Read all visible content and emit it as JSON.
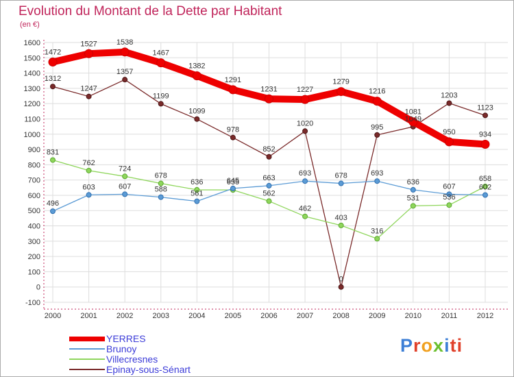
{
  "colors": {
    "title": "#c0245a",
    "axis_text": "#333333",
    "grid": "#dddddd",
    "legend_text": "#3b3bd8"
  },
  "chart_data": {
    "type": "line",
    "title": "Evolution du Montant de la Dette par Habitant",
    "subtitle": "(en €)",
    "xlabel": "",
    "ylabel": "",
    "x": [
      "2000",
      "2001",
      "2002",
      "2003",
      "2004",
      "2005",
      "2006",
      "2007",
      "2008",
      "2009",
      "2010",
      "2011",
      "2012"
    ],
    "yticks": [
      -100,
      0,
      100,
      200,
      300,
      400,
      500,
      600,
      700,
      800,
      900,
      1000,
      1100,
      1200,
      1300,
      1400,
      1500,
      1600
    ],
    "ylim": [
      -100,
      1600
    ],
    "grid": true,
    "legend_position": "bottom-left",
    "series": [
      {
        "name": "YERRES",
        "color": "#ee0000",
        "values": [
          1472,
          1527,
          1538,
          1467,
          1382,
          1291,
          1231,
          1227,
          1279,
          1216,
          1081,
          950,
          934
        ]
      },
      {
        "name": "Brunoy",
        "color": "#5b9bd5",
        "values": [
          496,
          603,
          607,
          588,
          561,
          645,
          663,
          693,
          678,
          693,
          636,
          607,
          602
        ]
      },
      {
        "name": "Villecresnes",
        "color": "#8fd65c",
        "values": [
          831,
          762,
          724,
          678,
          636,
          635,
          562,
          462,
          403,
          316,
          531,
          536,
          658
        ]
      },
      {
        "name": "Epinay-sous-Sénart",
        "color": "#7a2a2a",
        "values": [
          1312,
          1247,
          1357,
          1199,
          1099,
          978,
          852,
          1020,
          0,
          995,
          1049,
          1203,
          1123
        ]
      }
    ]
  },
  "logo": {
    "parts": [
      "P",
      "r",
      "o",
      "x",
      "i",
      "ti"
    ]
  }
}
